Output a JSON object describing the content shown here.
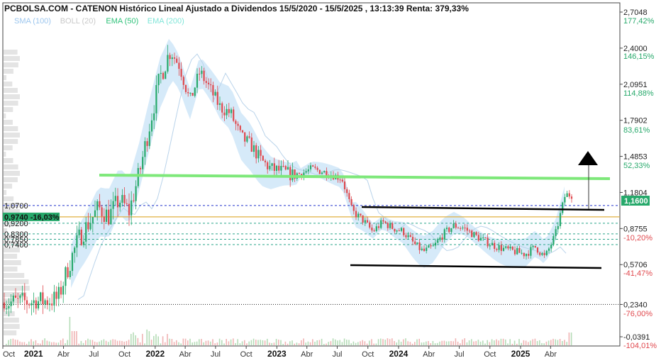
{
  "header": {
    "title": "PCBOLSA.COM - CATENON Histórico Lineal Ajustado a Dividendos 15/5/2020 - 15/5/2025 , 13:13:39 Renta: 379,33%"
  },
  "legend": [
    {
      "label": "SMA (100)",
      "color": "#9cc6ee"
    },
    {
      "label": "BOLL (20)",
      "color": "#c9c9c9"
    },
    {
      "label": "EMA (50)",
      "color": "#2fc27a"
    },
    {
      "label": "EMA (200)",
      "color": "#7fe5d8"
    }
  ],
  "colors": {
    "up": "#27a96b",
    "down": "#e0484d",
    "band": "#cfe6f8",
    "support_line": "#7ee87a",
    "channel": "#000000",
    "current_price_bg": "#27a96b",
    "level_green_bg": "#27a96b"
  },
  "chart_data": {
    "type": "candlestick",
    "title": "PCBOLSA.COM - CATENON Histórico Lineal Ajustado a Dividendos 15/5/2020 - 15/5/2025 , 13:13:39 Renta: 379,33%",
    "y_scale": "linear",
    "ylim": [
      -0.07,
      2.75
    ],
    "price_ticks": [
      "2,7048",
      "2,4000",
      "2,0951",
      "1,7902",
      "1,4853",
      "1,1804",
      "0,8755",
      "0,5706",
      "0,2340",
      "-0,0391"
    ],
    "pct_ticks": [
      "177,42%",
      "146,15%",
      "114,88%",
      "83,61%",
      "52,33%",
      "-10,20%",
      "-41,47%",
      "-76,00%",
      "-104,01%"
    ],
    "current_price": "1,1600",
    "horizontal_levels": [
      {
        "label": "1,0700",
        "value": 1.07,
        "style": "dashed"
      },
      {
        "label": "0,9740",
        "value": 0.974,
        "style": "solid",
        "badge": "-16,03%"
      },
      {
        "label": "0,9200",
        "value": 0.92,
        "style": "dashed"
      },
      {
        "label": "0,8300",
        "value": 0.83,
        "style": "dashed"
      },
      {
        "label": "0,7850",
        "value": 0.785,
        "style": "dashed"
      },
      {
        "label": "0,7400",
        "value": 0.74,
        "style": "dashed"
      }
    ],
    "x_tick_labels": [
      "Oct",
      "2021",
      "Abr",
      "Jul",
      "Oct",
      "2022",
      "Abr",
      "Jul",
      "Oct",
      "2023",
      "Abr",
      "Jul",
      "Oct",
      "2024",
      "Abr",
      "Jul",
      "Oct",
      "2025",
      "Abr"
    ],
    "x_tick_years": [
      "2021",
      "2022",
      "2023",
      "2024",
      "2025"
    ],
    "price_path": [
      {
        "date": "2020-10",
        "close": 0.25
      },
      {
        "date": "2021-01",
        "close": 0.26
      },
      {
        "date": "2021-03",
        "close": 0.28
      },
      {
        "date": "2021-04",
        "close": 0.55
      },
      {
        "date": "2021-05",
        "close": 0.78
      },
      {
        "date": "2021-06",
        "close": 0.92
      },
      {
        "date": "2021-07",
        "close": 1.05
      },
      {
        "date": "2021-08",
        "close": 0.98
      },
      {
        "date": "2021-09",
        "close": 1.12
      },
      {
        "date": "2021-10",
        "close": 1.02
      },
      {
        "date": "2021-11",
        "close": 1.35
      },
      {
        "date": "2021-12",
        "close": 1.75
      },
      {
        "date": "2022-01",
        "close": 2.15
      },
      {
        "date": "2022-02",
        "close": 2.38
      },
      {
        "date": "2022-03",
        "close": 2.25
      },
      {
        "date": "2022-04",
        "close": 1.95
      },
      {
        "date": "2022-05",
        "close": 2.2
      },
      {
        "date": "2022-06",
        "close": 2.05
      },
      {
        "date": "2022-07",
        "close": 1.9
      },
      {
        "date": "2022-08",
        "close": 1.85
      },
      {
        "date": "2022-09",
        "close": 1.65
      },
      {
        "date": "2022-10",
        "close": 1.58
      },
      {
        "date": "2022-11",
        "close": 1.45
      },
      {
        "date": "2022-12",
        "close": 1.38
      },
      {
        "date": "2023-01",
        "close": 1.36
      },
      {
        "date": "2023-02",
        "close": 1.33
      },
      {
        "date": "2023-03",
        "close": 1.34
      },
      {
        "date": "2023-04",
        "close": 1.38
      },
      {
        "date": "2023-05",
        "close": 1.36
      },
      {
        "date": "2023-06",
        "close": 1.33
      },
      {
        "date": "2023-07",
        "close": 1.3
      },
      {
        "date": "2023-08",
        "close": 1.02
      },
      {
        "date": "2023-09",
        "close": 0.95
      },
      {
        "date": "2023-10",
        "close": 0.85
      },
      {
        "date": "2023-11",
        "close": 0.93
      },
      {
        "date": "2023-12",
        "close": 0.88
      },
      {
        "date": "2024-01",
        "close": 0.85
      },
      {
        "date": "2024-02",
        "close": 0.75
      },
      {
        "date": "2024-03",
        "close": 0.68
      },
      {
        "date": "2024-04",
        "close": 0.72
      },
      {
        "date": "2024-05",
        "close": 0.83
      },
      {
        "date": "2024-06",
        "close": 0.9
      },
      {
        "date": "2024-07",
        "close": 0.88
      },
      {
        "date": "2024-08",
        "close": 0.82
      },
      {
        "date": "2024-09",
        "close": 0.77
      },
      {
        "date": "2024-10",
        "close": 0.73
      },
      {
        "date": "2024-11",
        "close": 0.7
      },
      {
        "date": "2024-12",
        "close": 0.68
      },
      {
        "date": "2025-01",
        "close": 0.66
      },
      {
        "date": "2025-02",
        "close": 0.72
      },
      {
        "date": "2025-03",
        "close": 0.63
      },
      {
        "date": "2025-04",
        "close": 0.82
      },
      {
        "date": "2025-05",
        "close": 1.16
      }
    ]
  }
}
